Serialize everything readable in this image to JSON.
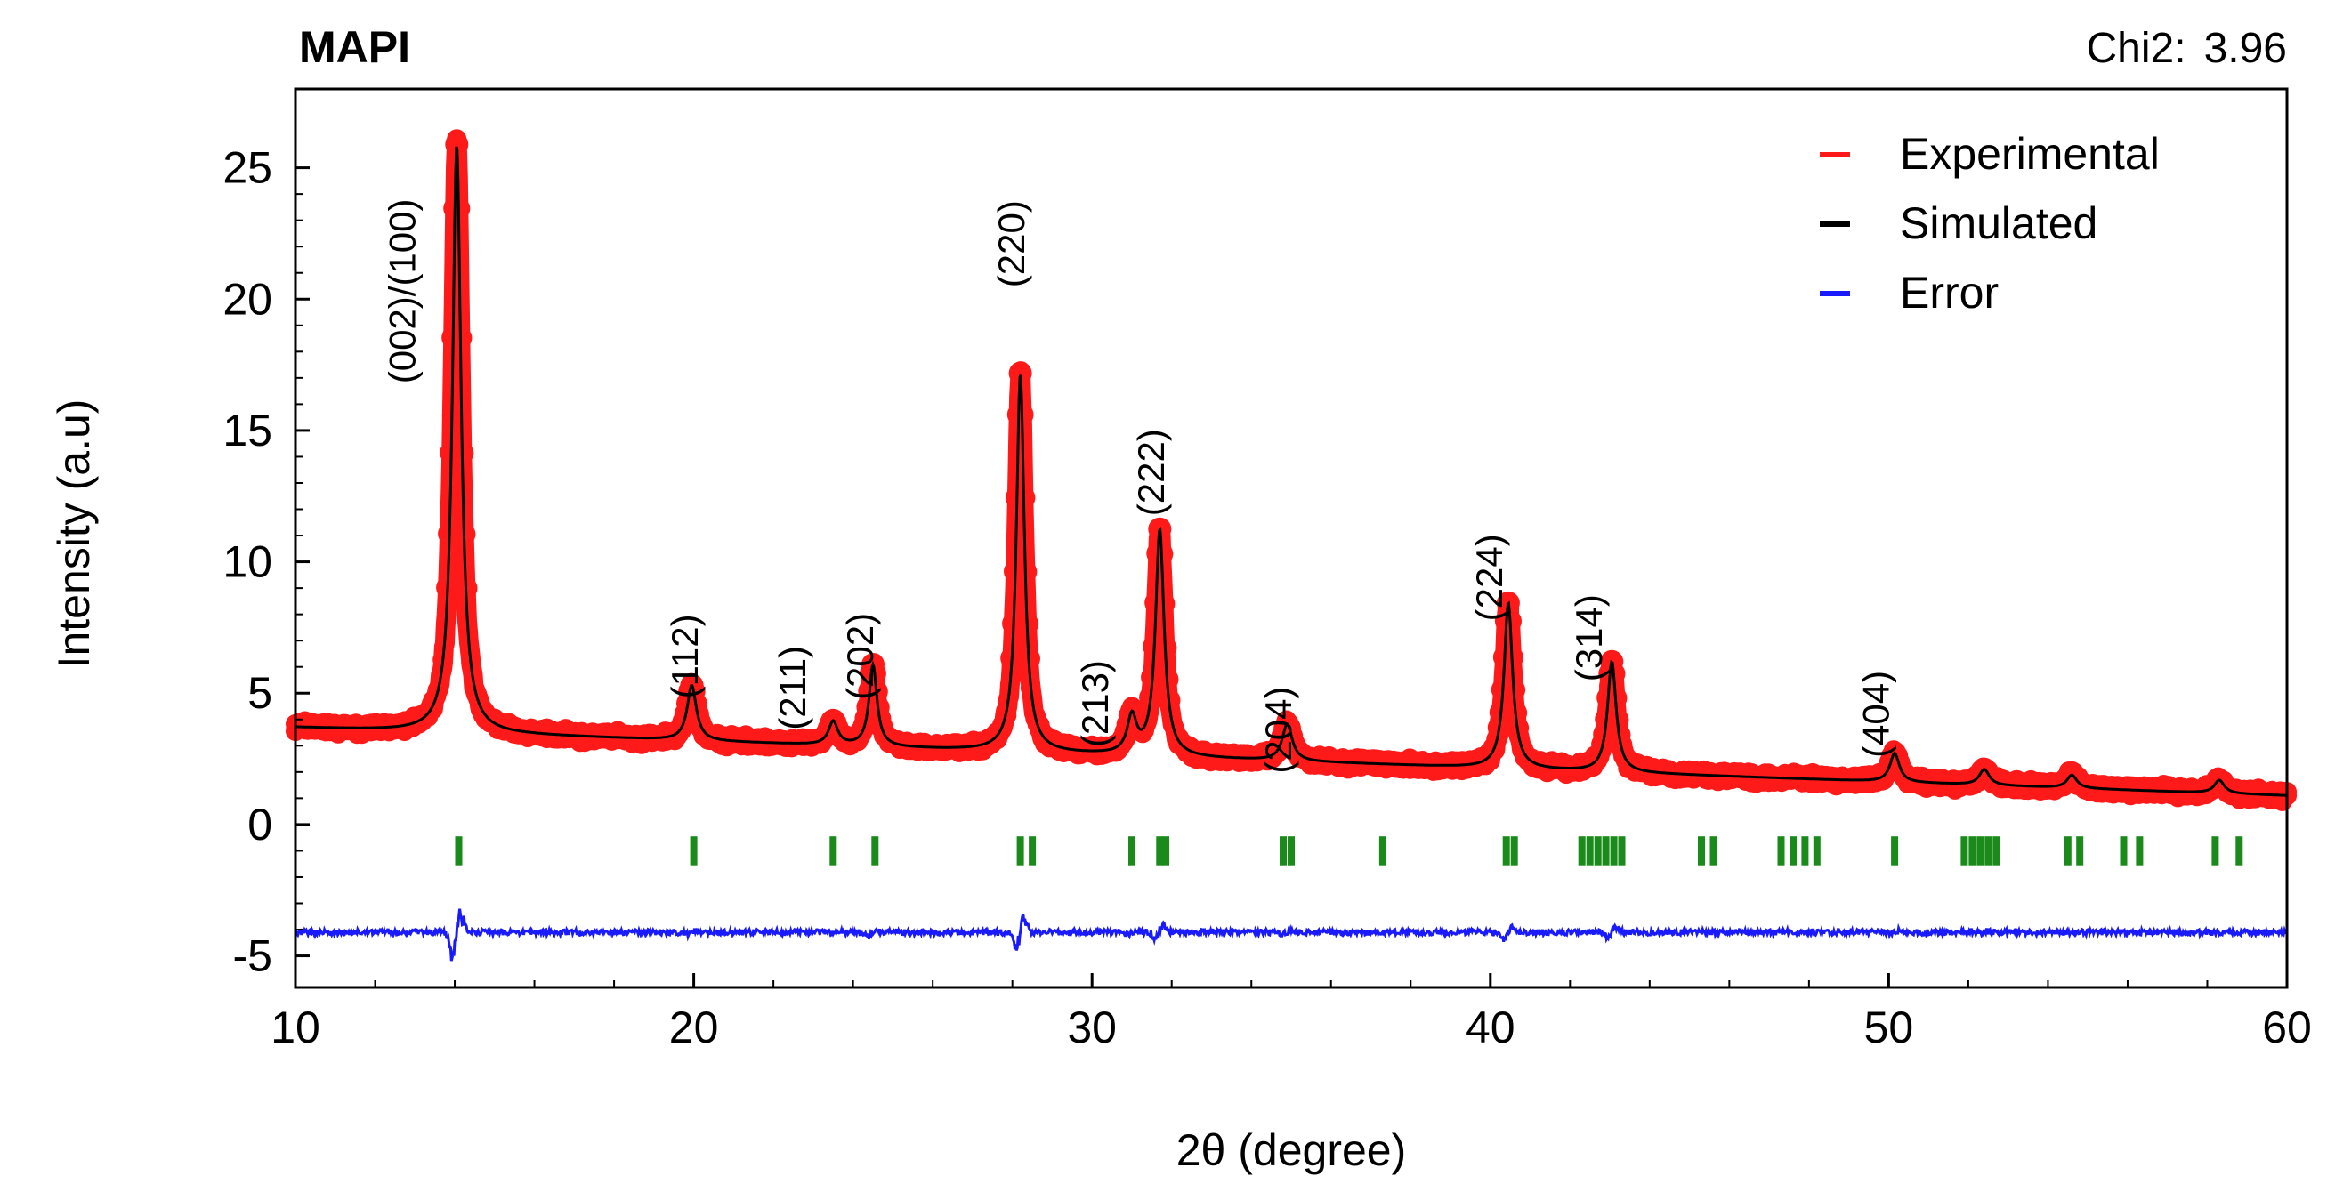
{
  "chart_data": {
    "type": "line",
    "title": "MAPI",
    "chi2_label": "Chi2:",
    "chi2_value": "3.96",
    "xlabel": "2θ (degree)",
    "ylabel": "Intensity (a.u)",
    "xlim": [
      10,
      60
    ],
    "ylim": [
      -6.2,
      28
    ],
    "xticks": [
      10,
      20,
      30,
      40,
      50,
      60
    ],
    "yticks": [
      25,
      20,
      15,
      10,
      5,
      0,
      -5
    ],
    "grid": false,
    "legend_position": "top-right",
    "colors": {
      "experimental": "#ff1a1a",
      "simulated": "#000000",
      "error": "#1a1aff",
      "bragg": "#1a8a1a"
    },
    "legend": [
      {
        "key": "experimental",
        "label": "Experimental"
      },
      {
        "key": "simulated",
        "label": "Simulated"
      },
      {
        "key": "error",
        "label": "Error"
      }
    ],
    "background": {
      "start": 3.7,
      "end": 1.1
    },
    "peaks": [
      {
        "x": 14.05,
        "height": 22.4,
        "width": 0.13
      },
      {
        "x": 19.95,
        "height": 2.1,
        "width": 0.14
      },
      {
        "x": 23.5,
        "height": 0.9,
        "width": 0.14
      },
      {
        "x": 24.5,
        "height": 3.1,
        "width": 0.12
      },
      {
        "x": 28.2,
        "height": 14.4,
        "width": 0.12
      },
      {
        "x": 31.0,
        "height": 1.4,
        "width": 0.14
      },
      {
        "x": 31.7,
        "height": 8.6,
        "width": 0.13
      },
      {
        "x": 34.9,
        "height": 1.4,
        "width": 0.15
      },
      {
        "x": 40.45,
        "height": 6.3,
        "width": 0.13
      },
      {
        "x": 43.05,
        "height": 4.2,
        "width": 0.13
      },
      {
        "x": 50.15,
        "height": 1.1,
        "width": 0.14
      },
      {
        "x": 52.4,
        "height": 0.6,
        "width": 0.15
      },
      {
        "x": 54.6,
        "height": 0.5,
        "width": 0.15
      },
      {
        "x": 58.3,
        "height": 0.5,
        "width": 0.15
      }
    ],
    "error_offset": -4.1,
    "bragg_y": -1.0,
    "bragg_positions": [
      14.1,
      20.0,
      23.5,
      24.55,
      28.2,
      28.5,
      31.0,
      31.7,
      31.85,
      34.8,
      35.0,
      37.3,
      40.4,
      40.6,
      42.3,
      42.5,
      42.7,
      42.9,
      43.1,
      43.3,
      45.3,
      45.6,
      47.3,
      47.6,
      47.9,
      48.2,
      50.15,
      51.9,
      52.1,
      52.3,
      52.5,
      52.7,
      54.5,
      54.8,
      55.9,
      56.3,
      58.2,
      58.8
    ],
    "annotations": [
      {
        "label": "(002)/(100)",
        "x": 13.0,
        "y": 20.3
      },
      {
        "label": "(112)",
        "x": 20.1,
        "y": 6.4
      },
      {
        "label": "(211)",
        "x": 22.8,
        "y": 5.2
      },
      {
        "label": "(202)",
        "x": 24.5,
        "y": 6.4
      },
      {
        "label": "(220)",
        "x": 28.3,
        "y": 22.1
      },
      {
        "label": "(213)",
        "x": 30.4,
        "y": 4.6
      },
      {
        "label": "(222)",
        "x": 31.8,
        "y": 13.4
      },
      {
        "label": "(204)",
        "x": 35.0,
        "y": 3.6
      },
      {
        "label": "(224)",
        "x": 40.3,
        "y": 9.4
      },
      {
        "label": "(314)",
        "x": 42.8,
        "y": 7.1
      },
      {
        "label": "(404)",
        "x": 50.0,
        "y": 4.2
      }
    ]
  }
}
